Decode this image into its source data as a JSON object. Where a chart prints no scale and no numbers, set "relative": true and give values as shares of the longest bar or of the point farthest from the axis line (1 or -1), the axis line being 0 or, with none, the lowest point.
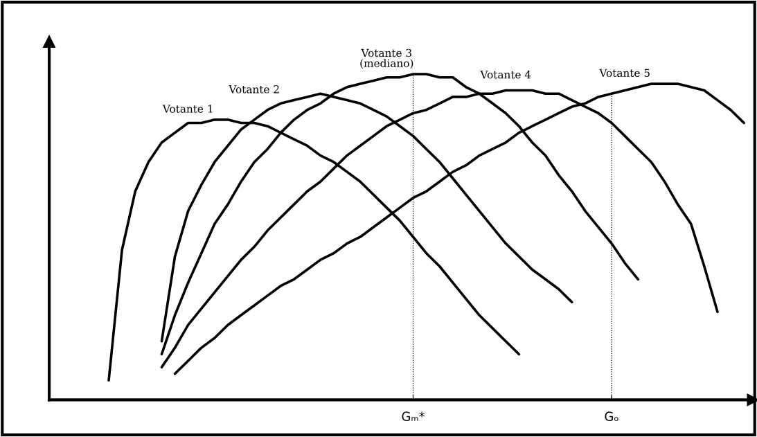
{
  "chart_data": {
    "type": "line",
    "relative": true,
    "legend": false,
    "grid": false,
    "marker": "none",
    "line_style": "solid",
    "categories": [
      null,
      null,
      null,
      null,
      null,
      null,
      null,
      null,
      null,
      null,
      null,
      null,
      null,
      null,
      null,
      null,
      null,
      null,
      null,
      null,
      null,
      null,
      null,
      null,
      null,
      null,
      "Gₘ*",
      null,
      null,
      null,
      null,
      null,
      null,
      null,
      null,
      null,
      null,
      null,
      null,
      null,
      null,
      "Gₒ",
      null,
      null,
      null,
      null,
      null,
      null,
      null,
      null,
      null,
      null
    ],
    "series": [
      {
        "name": "Votante 1",
        "color": "#000000",
        "values": [
          null,
          null,
          null,
          0.06,
          0.46,
          0.64,
          0.73,
          0.79,
          0.82,
          0.85,
          0.85,
          0.86,
          0.86,
          0.85,
          0.85,
          0.84,
          0.82,
          0.8,
          0.78,
          0.75,
          0.73,
          0.7,
          0.67,
          0.63,
          0.59,
          0.55,
          0.5,
          0.45,
          0.41,
          0.36,
          0.31,
          0.26,
          0.22,
          0.18,
          0.14,
          null,
          null,
          null,
          null,
          null,
          null,
          null,
          null,
          null,
          null,
          null,
          null,
          null,
          null,
          null,
          null,
          null
        ]
      },
      {
        "name": "Votante 2",
        "color": "#000000",
        "values": [
          null,
          null,
          null,
          null,
          null,
          null,
          null,
          0.18,
          0.44,
          0.58,
          0.66,
          0.73,
          0.78,
          0.83,
          0.86,
          0.89,
          0.91,
          0.92,
          0.93,
          0.94,
          0.93,
          0.92,
          0.91,
          0.89,
          0.87,
          0.84,
          0.81,
          0.77,
          0.73,
          0.68,
          0.63,
          0.58,
          0.53,
          0.48,
          0.44,
          0.4,
          0.37,
          0.34,
          0.3,
          null,
          null,
          null,
          null,
          null,
          null,
          null,
          null,
          null,
          null,
          null,
          null,
          null
        ]
      },
      {
        "name": "Votante 3\n(mediano)",
        "color": "#000000",
        "values": [
          null,
          null,
          null,
          null,
          null,
          null,
          null,
          0.14,
          0.26,
          0.36,
          0.45,
          0.54,
          0.6,
          0.67,
          0.73,
          0.77,
          0.82,
          0.86,
          0.89,
          0.91,
          0.94,
          0.96,
          0.97,
          0.98,
          0.99,
          0.99,
          1,
          1,
          0.99,
          0.99,
          0.96,
          0.94,
          0.91,
          0.88,
          0.84,
          0.79,
          0.75,
          0.69,
          0.64,
          0.58,
          0.53,
          0.48,
          0.42,
          0.37,
          null,
          null,
          null,
          null,
          null,
          null,
          null,
          null
        ]
      },
      {
        "name": "Votante 4",
        "color": "#000000",
        "values": [
          null,
          null,
          null,
          null,
          null,
          null,
          null,
          0.1,
          0.16,
          0.23,
          0.28,
          0.33,
          0.38,
          0.43,
          0.47,
          0.52,
          0.56,
          0.6,
          0.64,
          0.67,
          0.71,
          0.75,
          0.78,
          0.81,
          0.84,
          0.86,
          0.88,
          0.89,
          0.91,
          0.93,
          0.93,
          0.94,
          0.94,
          0.95,
          0.95,
          0.95,
          0.94,
          0.94,
          0.92,
          0.9,
          0.88,
          0.85,
          0.81,
          0.77,
          0.73,
          0.67,
          0.6,
          0.54,
          0.41,
          0.27,
          null,
          null
        ]
      },
      {
        "name": "Votante 5",
        "color": "#000000",
        "values": [
          null,
          null,
          null,
          null,
          null,
          null,
          null,
          null,
          0.08,
          0.12,
          0.16,
          0.19,
          0.23,
          0.26,
          0.29,
          0.32,
          0.35,
          0.37,
          0.4,
          0.43,
          0.45,
          0.48,
          0.5,
          0.53,
          0.56,
          0.59,
          0.62,
          0.64,
          0.67,
          0.7,
          0.72,
          0.75,
          0.77,
          0.79,
          0.82,
          0.84,
          0.86,
          0.88,
          0.9,
          0.91,
          0.93,
          0.94,
          0.95,
          0.96,
          0.97,
          0.97,
          0.97,
          0.96,
          0.95,
          0.92,
          0.89,
          0.85
        ]
      }
    ],
    "ref_lines": [
      {
        "axis": "x",
        "value": "Gₘ*",
        "color": "#000000",
        "line_style": "dotted"
      },
      {
        "axis": "x",
        "value": "Gₒ",
        "color": "#000000",
        "line_style": "dotted"
      }
    ]
  }
}
